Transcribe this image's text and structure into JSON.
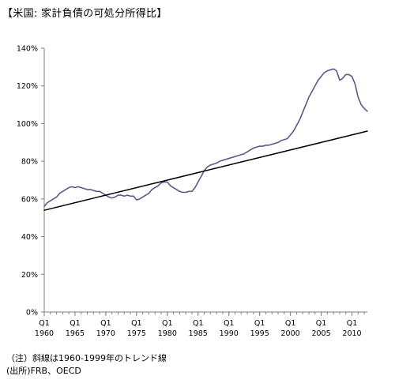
{
  "chart_data": {
    "type": "line",
    "title": "【米国: 家計負債の可処分所得比】",
    "xlabel": "",
    "ylabel": "",
    "x_range": [
      1960.0,
      2012.5
    ],
    "ylim": [
      0,
      140
    ],
    "y_ticks": [
      0,
      20,
      40,
      60,
      80,
      100,
      120,
      140
    ],
    "y_tick_labels": [
      "0%",
      "20%",
      "40%",
      "60%",
      "80%",
      "100%",
      "120%",
      "140%"
    ],
    "x_ticks": [
      {
        "year": 1960,
        "q": "Q1",
        "label": "1960"
      },
      {
        "year": 1965,
        "q": "Q1",
        "label": "1965"
      },
      {
        "year": 1970,
        "q": "Q1",
        "label": "1970"
      },
      {
        "year": 1975,
        "q": "Q1",
        "label": "1975"
      },
      {
        "year": 1980,
        "q": "Q1",
        "label": "1980"
      },
      {
        "year": 1985,
        "q": "Q1",
        "label": "1985"
      },
      {
        "year": 1990,
        "q": "Q1",
        "label": "1990"
      },
      {
        "year": 1995,
        "q": "Q1",
        "label": "1995"
      },
      {
        "year": 2000,
        "q": "Q1",
        "label": "2000"
      },
      {
        "year": 2005,
        "q": "Q1",
        "label": "2005"
      },
      {
        "year": 2010,
        "q": "Q1",
        "label": "2010"
      }
    ],
    "grid": false,
    "legend": "none",
    "series": [
      {
        "color": "#5a5a8a",
        "x": [
          1960.0,
          1960.5,
          1961.0,
          1961.5,
          1962.0,
          1962.5,
          1963.0,
          1963.5,
          1964.0,
          1964.5,
          1965.0,
          1965.5,
          1966.0,
          1966.5,
          1967.0,
          1967.5,
          1968.0,
          1968.5,
          1969.0,
          1969.5,
          1970.0,
          1970.5,
          1971.0,
          1971.5,
          1972.0,
          1972.5,
          1973.0,
          1973.5,
          1974.0,
          1974.5,
          1975.0,
          1975.5,
          1976.0,
          1976.5,
          1977.0,
          1977.5,
          1978.0,
          1978.5,
          1979.0,
          1979.5,
          1980.0,
          1980.5,
          1981.0,
          1981.5,
          1982.0,
          1982.5,
          1983.0,
          1983.5,
          1984.0,
          1984.5,
          1985.0,
          1985.5,
          1986.0,
          1986.5,
          1987.0,
          1987.5,
          1988.0,
          1988.5,
          1989.0,
          1989.5,
          1990.0,
          1990.5,
          1991.0,
          1991.5,
          1992.0,
          1992.5,
          1993.0,
          1993.5,
          1994.0,
          1994.5,
          1995.0,
          1995.5,
          1996.0,
          1996.5,
          1997.0,
          1997.5,
          1998.0,
          1998.5,
          1999.0,
          1999.5,
          2000.0,
          2000.5,
          2001.0,
          2001.5,
          2002.0,
          2002.5,
          2003.0,
          2003.5,
          2004.0,
          2004.5,
          2005.0,
          2005.5,
          2006.0,
          2006.5,
          2007.0,
          2007.5,
          2008.0,
          2008.5,
          2009.0,
          2009.5,
          2010.0,
          2010.5,
          2011.0,
          2011.5,
          2012.0,
          2012.5
        ],
        "values": [
          56,
          58,
          59,
          60,
          61,
          63,
          64,
          65,
          66,
          66.5,
          66,
          66.5,
          66,
          65.5,
          65,
          65,
          64.5,
          64,
          64,
          63,
          62,
          61,
          60.5,
          61,
          62,
          62,
          61.5,
          62,
          61.5,
          61.5,
          59.5,
          60,
          61,
          62,
          63,
          65,
          66,
          67,
          68.5,
          69,
          69,
          67,
          66,
          65,
          64,
          63.5,
          63.5,
          64,
          64,
          66,
          69,
          72,
          75,
          77,
          78,
          78.5,
          79,
          80,
          80.5,
          81,
          81.5,
          82,
          82.5,
          83,
          83.5,
          84,
          85,
          86,
          87,
          87.5,
          88,
          88,
          88.5,
          88.5,
          89,
          89.5,
          90,
          91,
          91.5,
          92,
          94,
          96,
          99,
          102,
          106,
          110,
          114,
          117,
          120,
          123,
          125,
          127,
          128,
          128.5,
          129,
          128,
          123,
          124,
          126,
          126,
          125,
          121,
          114,
          110,
          108,
          106.5
        ]
      },
      {
        "name": "トレンド線",
        "color": "#000000",
        "x": [
          1960.0,
          2012.5
        ],
        "values": [
          54,
          96
        ]
      }
    ]
  },
  "notes": {
    "note1": "（注）斜線は1960-1999年のトレンド線",
    "note2": "(出所)FRB、OECD"
  }
}
